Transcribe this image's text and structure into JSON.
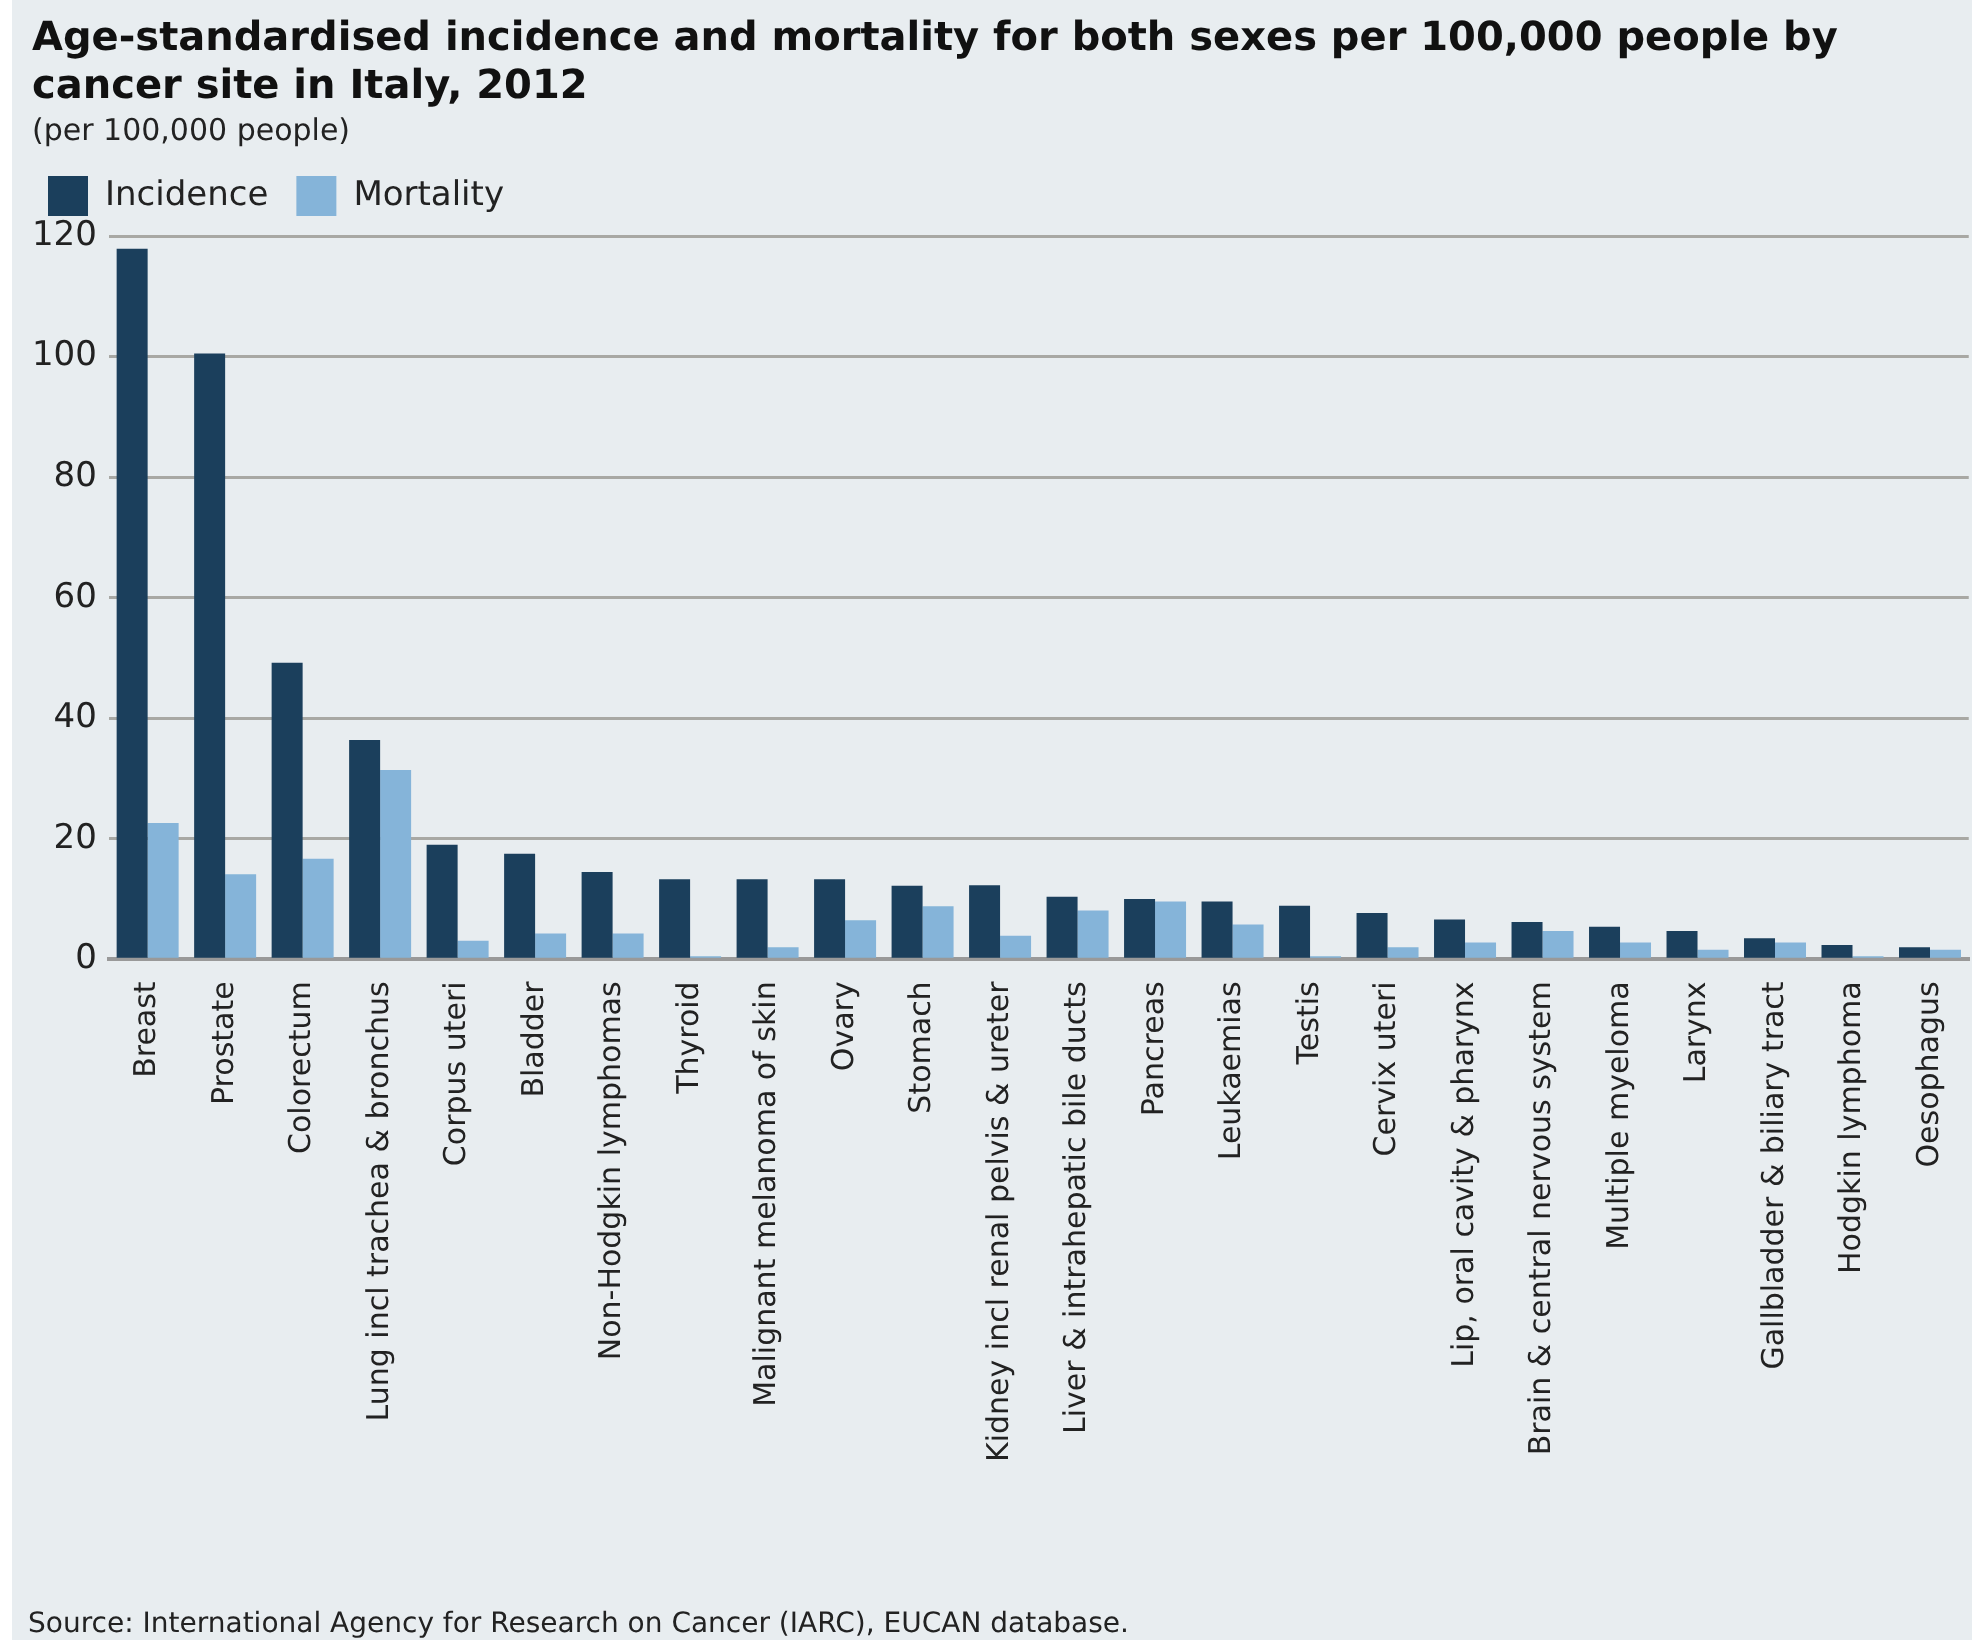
{
  "chart_data": {
    "type": "bar",
    "title": "Age-standardised incidence and mortality for both sexes per 100,000 people by cancer site in Italy, 2012",
    "subtitle": "(per 100,000 people)",
    "categories": [
      "Breast",
      "Prostate",
      "Colorectum",
      "Lung incl trachea & bronchus",
      "Corpus uteri",
      "Bladder",
      "Non-Hodgkin lymphomas",
      "Thyroid",
      "Malignant melanoma of skin",
      "Ovary",
      "Stomach",
      "Kidney incl renal pelvis & ureter",
      "Liver & intrahepatic bile ducts",
      "Pancreas",
      "Leukaemias",
      "Testis",
      "Cervix uteri",
      "Lip, oral cavity & pharynx",
      "Brain & central nervous system",
      "Multiple myeloma",
      "Larynx",
      "Gallbladder & biliary tract",
      "Hodgkin lymphoma",
      "Oesophagus"
    ],
    "series": [
      {
        "name": "Incidence",
        "color": "#1b3f5c",
        "values": [
          117.9,
          100.5,
          49.2,
          36.4,
          19.0,
          17.5,
          14.5,
          13.3,
          13.3,
          13.3,
          12.2,
          12.3,
          10.4,
          10.0,
          9.6,
          8.9,
          7.7,
          6.6,
          6.2,
          5.4,
          4.7,
          3.5,
          2.4,
          2.0
        ]
      },
      {
        "name": "Mortality",
        "color": "#85b4d9",
        "values": [
          22.6,
          14.1,
          16.7,
          31.4,
          3.1,
          4.3,
          4.3,
          0.5,
          2.0,
          6.5,
          8.8,
          3.9,
          8.1,
          9.6,
          5.8,
          0.5,
          2.0,
          2.8,
          4.7,
          2.8,
          1.6,
          2.8,
          0.5,
          1.6
        ]
      }
    ],
    "ylim": [
      0,
      120
    ],
    "yticks": [
      0,
      20,
      40,
      60,
      80,
      100,
      120
    ],
    "grid": "y",
    "legend": "top left",
    "annotations": [
      "Source: International Agency for Research on Cancer (IARC), EUCAN database."
    ]
  }
}
